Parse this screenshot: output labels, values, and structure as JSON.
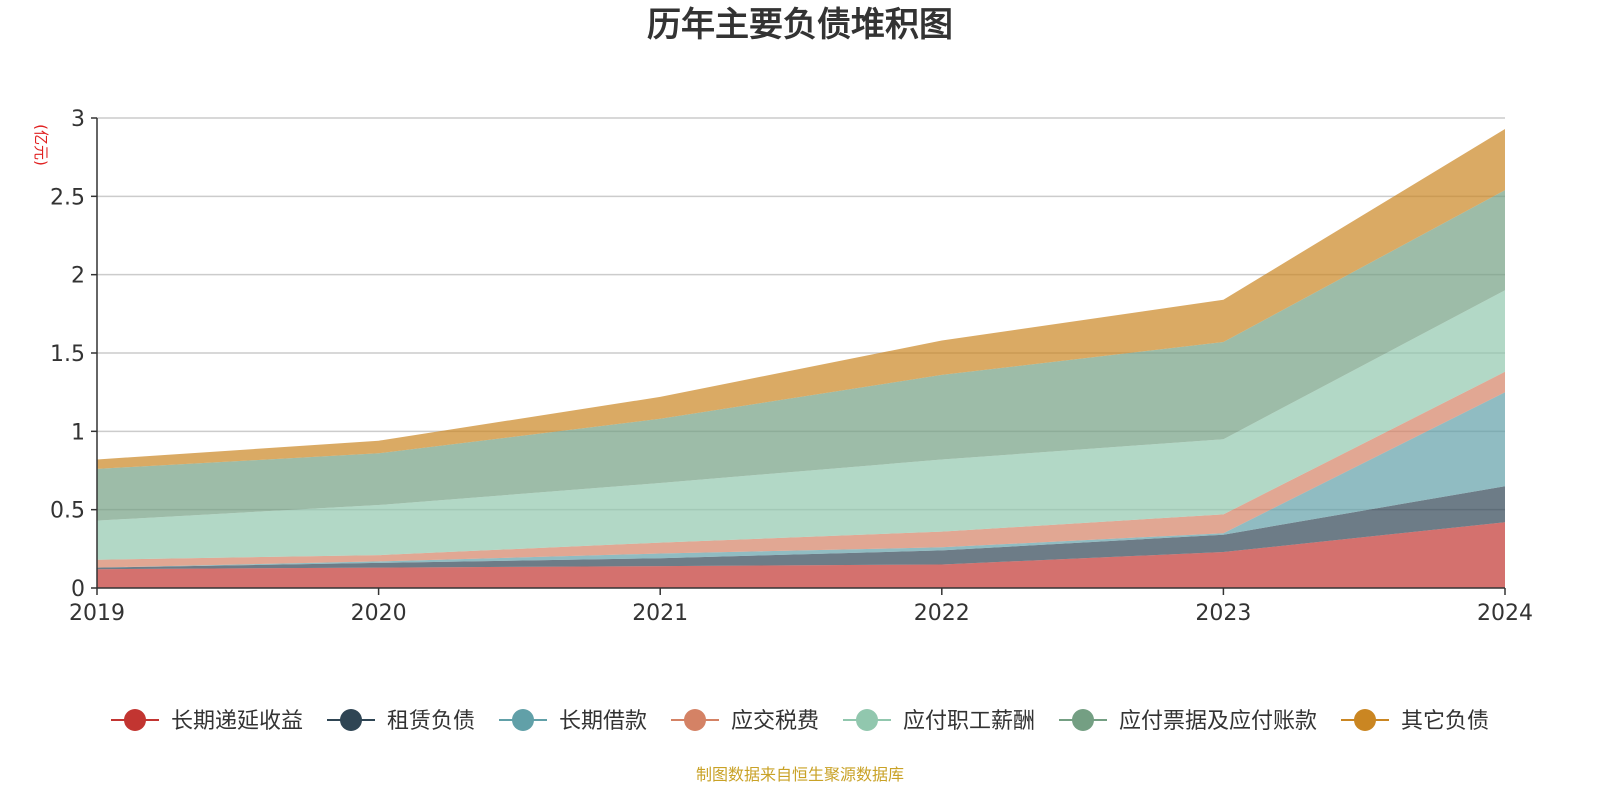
{
  "chart_data": {
    "type": "area",
    "stacked": true,
    "title": "历年主要负债堆积图",
    "ylabel": "(亿元)",
    "xlabel": "",
    "x": [
      "2019",
      "2020",
      "2021",
      "2022",
      "2023",
      "2024"
    ],
    "ylim": [
      0,
      3
    ],
    "yticks": [
      "0",
      "0.5",
      "1",
      "1.5",
      "2",
      "2.5",
      "3"
    ],
    "grid": true,
    "legend_position": "bottom",
    "series": [
      {
        "name": "长期递延收益",
        "color": "#c23531",
        "values": [
          0.12,
          0.13,
          0.14,
          0.15,
          0.23,
          0.42
        ]
      },
      {
        "name": "租赁负债",
        "color": "#2f4554",
        "values": [
          0.01,
          0.03,
          0.05,
          0.09,
          0.11,
          0.23
        ]
      },
      {
        "name": "长期借款",
        "color": "#61a0a8",
        "values": [
          0.0,
          0.01,
          0.03,
          0.02,
          0.01,
          0.6
        ]
      },
      {
        "name": "应交税费",
        "color": "#d48265",
        "values": [
          0.05,
          0.04,
          0.07,
          0.1,
          0.12,
          0.13
        ]
      },
      {
        "name": "应付职工薪酬",
        "color": "#91c7ae",
        "values": [
          0.25,
          0.32,
          0.38,
          0.46,
          0.48,
          0.52
        ]
      },
      {
        "name": "应付票据及应付账款",
        "color": "#749f83",
        "values": [
          0.33,
          0.33,
          0.41,
          0.54,
          0.62,
          0.64
        ]
      },
      {
        "name": "其它负债",
        "color": "#ca8622",
        "values": [
          0.06,
          0.08,
          0.14,
          0.22,
          0.27,
          0.39
        ]
      }
    ],
    "source": "制图数据来自恒生聚源数据库"
  }
}
